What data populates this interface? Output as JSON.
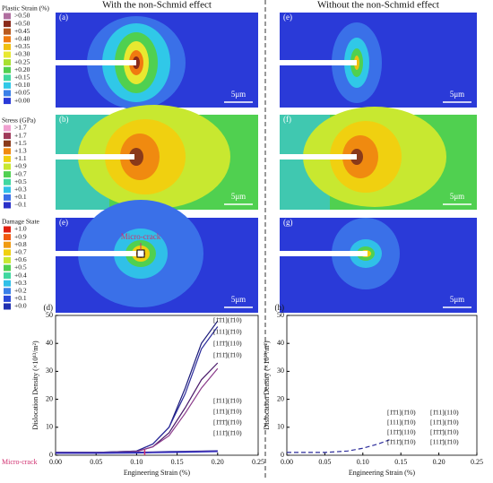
{
  "headers": [
    "With the non-Schmid effect",
    "Without the non-Schmid effect"
  ],
  "panels": [
    {
      "label": "(a)",
      "scalebar": "5μm"
    },
    {
      "label": "(b)",
      "scalebar": "5μm"
    },
    {
      "label": "(e)",
      "scalebar": "5μm",
      "annotation": "Micro-crack"
    },
    {
      "label": "(e)",
      "scalebar": "5μm"
    },
    {
      "label": "(f)",
      "scalebar": "5μm"
    },
    {
      "label": "(g)",
      "scalebar": "5μm"
    }
  ],
  "legends": [
    {
      "title": "Plastic Strain (%)",
      "entries": [
        ">0.50",
        "+0.50",
        "+0.45",
        "+0.40",
        "+0.35",
        "+0.30",
        "+0.25",
        "+0.20",
        "+0.15",
        "+0.10",
        "+0.05",
        "+0.00"
      ],
      "colors": [
        "#b06fa0",
        "#8a2a1a",
        "#b85a20",
        "#f07a10",
        "#f0c010",
        "#e8e830",
        "#a8e030",
        "#50d050",
        "#40d8a0",
        "#30c8e8",
        "#3a80e8",
        "#2a3ad8"
      ]
    },
    {
      "title": "Stress (GPa)",
      "entries": [
        ">1.7",
        "+1.7",
        "+1.5",
        "+1.3",
        "+1.1",
        "+0.9",
        "+0.7",
        "+0.5",
        "+0.3",
        "+0.1",
        "−0.1"
      ],
      "colors": [
        "#f0a0d0",
        "#a03a5a",
        "#8a3a1a",
        "#f08a10",
        "#f0d010",
        "#c8e830",
        "#50d050",
        "#40d8a0",
        "#30c0e8",
        "#3a70e8",
        "#2a30c8"
      ]
    },
    {
      "title": "Damage State",
      "entries": [
        "+1.0",
        "+0.9",
        "+0.8",
        "+0.7",
        "+0.6",
        "+0.5",
        "+0.4",
        "+0.3",
        "+0.2",
        "+0.1",
        "+0.0"
      ],
      "colors": [
        "#e02010",
        "#f05a10",
        "#f09a10",
        "#f0d010",
        "#c8e830",
        "#50d050",
        "#40d8a0",
        "#30c0e8",
        "#3a80e8",
        "#2a48d8",
        "#2030b0"
      ]
    }
  ],
  "chart_data": [
    {
      "type": "line",
      "label": "(d)",
      "xlabel": "Engineering Strain (%)",
      "ylabel": "Dislocation Density (×10¹³/m²)",
      "xlim": [
        0,
        0.25
      ],
      "ylim": [
        0,
        50
      ],
      "xticks": [
        {
          "value": 0,
          "label": "0.00"
        },
        0.05,
        {
          "value": 0.1,
          "label": "0.10"
        },
        0.15,
        {
          "value": 0.2,
          "label": "0.20"
        },
        0.25
      ],
      "yticks": [
        0,
        10,
        20,
        30,
        40,
        50
      ],
      "annotation": "Micro-crack",
      "x": [
        0,
        0.05,
        0.1,
        0.12,
        0.14,
        0.16,
        0.18,
        0.2
      ],
      "series": [
        {
          "name": "[1̄1̄1](1̄10)",
          "color": "#1a1a7a",
          "values": [
            1,
            1,
            1.5,
            4,
            10,
            24,
            40,
            48
          ]
        },
        {
          "name": "[111](1̄10)",
          "color": "#2a2a9a",
          "values": [
            1,
            1,
            1.5,
            4,
            10,
            22,
            38,
            46
          ]
        },
        {
          "name": "[11̄1̄](110)",
          "color": "#4a1a6a",
          "values": [
            1,
            1,
            1.3,
            3,
            8,
            17,
            27,
            33
          ]
        },
        {
          "name": "[1̄11̄](1̄10)",
          "color": "#8a3a8a",
          "values": [
            1,
            1,
            1.3,
            3,
            7,
            15,
            24,
            31
          ]
        },
        {
          "name": "[1̄11](1̄10)",
          "color": "#3a3aa0",
          "values": [
            1,
            1,
            1.1,
            1.2,
            1.3,
            1.4,
            1.5,
            1.6
          ]
        },
        {
          "name": "[11̄1](1̄10)",
          "color": "#5050b0",
          "values": [
            0.9,
            0.9,
            1,
            1.1,
            1.2,
            1.3,
            1.4,
            1.5
          ]
        },
        {
          "name": "[1̄1̄1̄](1̄10)",
          "color": "#6a3a9a",
          "values": [
            0.8,
            0.8,
            0.9,
            1,
            1.1,
            1.2,
            1.3,
            1.4
          ]
        },
        {
          "name": "[111̄](1̄10)",
          "color": "#2020c0",
          "values": [
            0.7,
            0.7,
            0.8,
            0.9,
            1,
            1.1,
            1.2,
            1.3
          ]
        }
      ]
    },
    {
      "type": "line",
      "label": "(h)",
      "xlabel": "Engineering Strain (%)",
      "ylabel": "Dislocation Density (×10¹³/m²)",
      "xlim": [
        0,
        0.25
      ],
      "ylim": [
        0,
        50
      ],
      "xticks": [
        {
          "value": 0,
          "label": "0.00"
        },
        0.05,
        {
          "value": 0.1,
          "label": "0.10"
        },
        0.15,
        {
          "value": 0.2,
          "label": "0.20"
        },
        0.25
      ],
      "yticks": [
        0,
        10,
        20,
        30,
        40,
        50
      ],
      "dashed": true,
      "x": [
        0,
        0.05,
        0.08,
        0.1,
        0.12,
        0.135
      ],
      "series": [
        {
          "color": "#2a2a9a",
          "values": [
            1,
            1,
            1.5,
            2.5,
            4,
            5.5
          ]
        }
      ],
      "labels": [
        "[1̄1̄1](1̄10)",
        "[1̄11](110)",
        "[111](1̄10)",
        "[11̄1](1̄10)",
        "[11̄1̄](110)",
        "[1̄1̄1̄](1̄10)",
        "[1̄11̄](1̄10)",
        "[111̄](1̄10)"
      ]
    }
  ]
}
